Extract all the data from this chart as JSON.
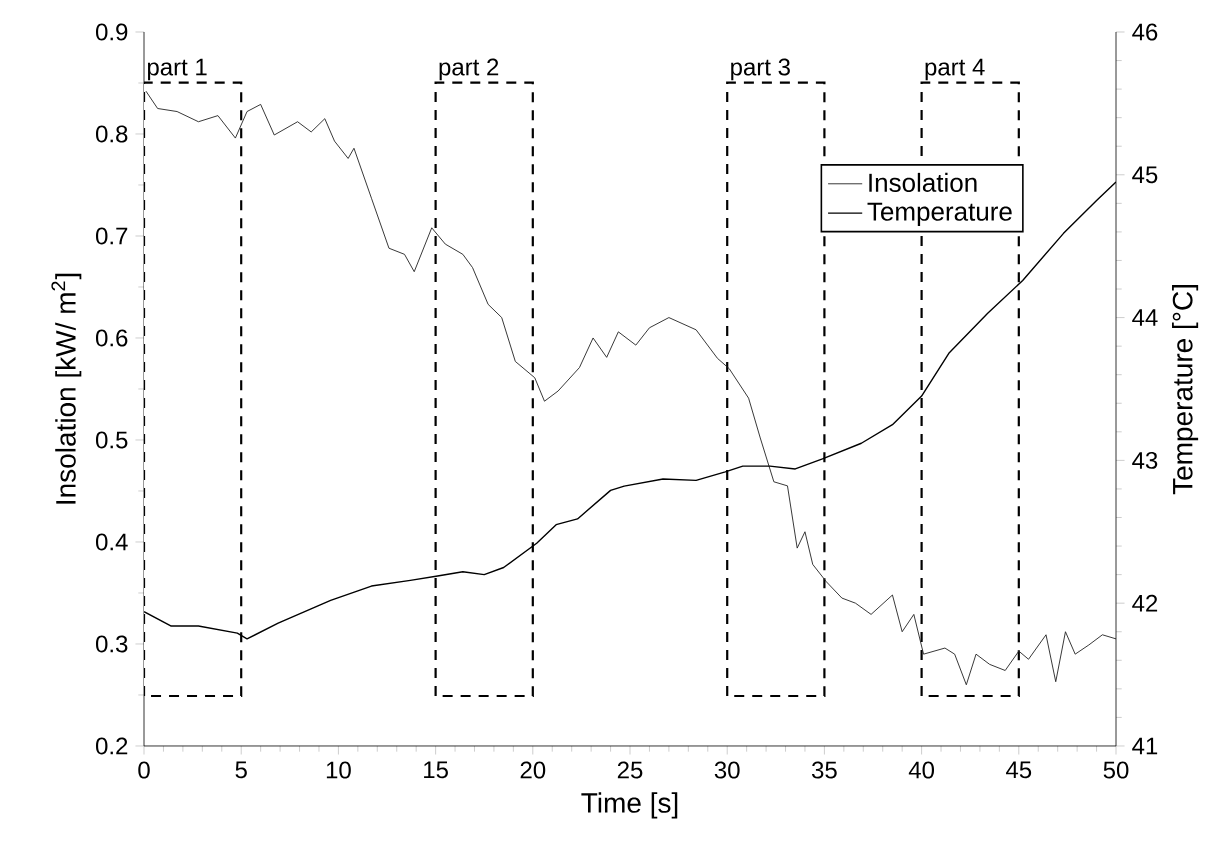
{
  "chart_data": {
    "type": "line",
    "xlabel": "Time [s]",
    "ylabel": "Insolation [kW/ m$^{2}$]",
    "y2label": "Temperature [°C]",
    "xlim": [
      0,
      50
    ],
    "xticks": [
      0,
      5,
      10,
      15,
      20,
      25,
      30,
      35,
      40,
      45,
      50
    ],
    "ylim": [
      0.2,
      0.9
    ],
    "yticks": [
      0.2,
      0.3,
      0.4,
      0.5,
      0.6,
      0.7,
      0.8,
      0.9
    ],
    "y2lim": [
      41,
      46
    ],
    "y2ticks": [
      41,
      42,
      43,
      44,
      45,
      46
    ],
    "legend": "top right",
    "grid": false,
    "series": [
      {
        "name": "Insolation",
        "color": "#222222",
        "x": [
          0.1,
          0.7,
          1.7,
          2.8,
          3.8,
          4.7,
          5.3,
          6.0,
          6.7,
          7.9,
          8.6,
          9.3,
          9.8,
          10.5,
          10.8,
          11.7,
          12.6,
          13.4,
          13.9,
          14.8,
          15.5,
          16.4,
          16.9,
          17.7,
          18.4,
          19.1,
          20.1,
          20.6,
          21.3,
          22.4,
          23.1,
          23.8,
          24.4,
          25.3,
          26.0,
          27.0,
          28.4,
          29.5,
          30.1,
          31.1,
          31.7,
          32.4,
          33.1,
          33.6,
          34.0,
          34.4,
          35.1,
          35.9,
          36.6,
          37.4,
          38.5,
          39.0,
          39.6,
          40.1,
          41.2,
          41.7,
          42.3,
          42.8,
          43.5,
          44.3,
          45.0,
          45.5,
          46.4,
          46.9,
          47.4,
          47.9,
          48.6,
          49.3,
          50.0
        ],
        "values": [
          0.842,
          0.825,
          0.822,
          0.812,
          0.818,
          0.796,
          0.822,
          0.829,
          0.799,
          0.812,
          0.802,
          0.815,
          0.793,
          0.776,
          0.786,
          0.737,
          0.688,
          0.682,
          0.665,
          0.708,
          0.692,
          0.682,
          0.669,
          0.633,
          0.62,
          0.577,
          0.561,
          0.538,
          0.548,
          0.571,
          0.6,
          0.581,
          0.606,
          0.593,
          0.61,
          0.62,
          0.608,
          0.58,
          0.57,
          0.541,
          0.502,
          0.459,
          0.455,
          0.394,
          0.41,
          0.378,
          0.361,
          0.345,
          0.34,
          0.329,
          0.348,
          0.312,
          0.329,
          0.29,
          0.296,
          0.29,
          0.26,
          0.29,
          0.28,
          0.274,
          0.293,
          0.285,
          0.309,
          0.263,
          0.312,
          0.29,
          0.299,
          0.309,
          0.305
        ]
      },
      {
        "name": "Temperature",
        "color": "#000000",
        "axis": "y2",
        "x": [
          0.0,
          1.4,
          2.8,
          4.8,
          5.3,
          6.9,
          9.6,
          11.7,
          13.7,
          15.1,
          16.4,
          17.5,
          18.5,
          20.2,
          21.2,
          22.3,
          24.0,
          24.7,
          26.7,
          28.4,
          29.9,
          30.8,
          32.2,
          33.5,
          34.9,
          36.9,
          38.5,
          40.0,
          41.4,
          43.4,
          45.2,
          47.3,
          49.0,
          50.0
        ],
        "values": [
          41.94,
          41.84,
          41.84,
          41.79,
          41.75,
          41.86,
          42.02,
          42.12,
          42.16,
          42.19,
          42.22,
          42.2,
          42.25,
          42.42,
          42.55,
          42.59,
          42.79,
          42.82,
          42.87,
          42.86,
          42.92,
          42.96,
          42.96,
          42.94,
          43.01,
          43.12,
          43.25,
          43.45,
          43.75,
          44.03,
          44.26,
          44.59,
          44.82,
          44.95
        ]
      }
    ],
    "bands": [
      {
        "axis": "x",
        "from": 0,
        "to": 5,
        "label": "part 1",
        "color": "#ffffff"
      },
      {
        "axis": "x",
        "from": 15,
        "to": 20,
        "label": "part 2",
        "color": "#ffffff"
      },
      {
        "axis": "x",
        "from": 30,
        "to": 35,
        "label": "part 3",
        "color": "#ffffff"
      },
      {
        "axis": "x",
        "from": 40,
        "to": 45,
        "label": "part 4",
        "color": "#ffffff"
      }
    ]
  }
}
